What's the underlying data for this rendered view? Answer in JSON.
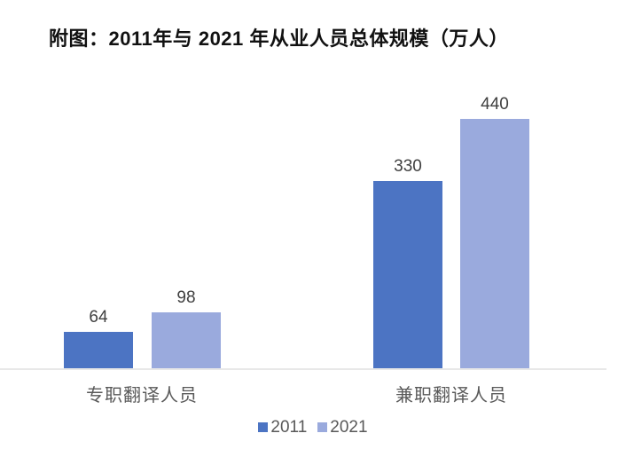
{
  "title": "附图：2011年与 2021 年从业人员总体规模（万人）",
  "colors": {
    "series_2011": "#4C74C3",
    "series_2021": "#9AAADD",
    "axis_line": "#E8E8E8",
    "category_text": "#595959",
    "value_text": "#404040",
    "title_text": "#111111",
    "background": "#FFFFFF"
  },
  "chart_data": {
    "type": "bar",
    "title": "附图：2011年与 2021 年从业人员总体规模（万人）",
    "unit": "万人",
    "categories": [
      "专职翻译人员",
      "兼职翻译人员"
    ],
    "series": [
      {
        "name": "2011",
        "color": "#4C74C3",
        "values": [
          64,
          330
        ]
      },
      {
        "name": "2021",
        "color": "#9AAADD",
        "values": [
          98,
          440
        ]
      }
    ],
    "xlabel": "",
    "ylabel": "",
    "ylim": [
      0,
      460
    ],
    "grid": false,
    "value_labels": true,
    "legend_position": "bottom"
  }
}
